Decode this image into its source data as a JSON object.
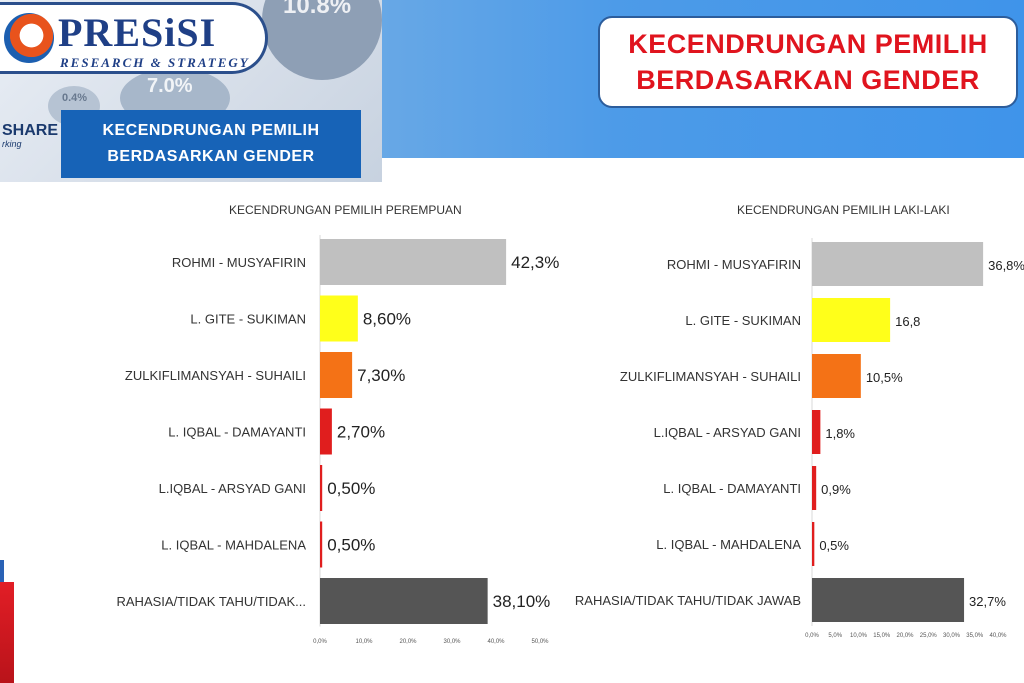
{
  "logo": {
    "title": "PRESiSI",
    "subtitle": "RESEARCH & STRATEGY"
  },
  "background": {
    "pct_a": "10.8%",
    "pct_b": "7.0%",
    "pct_c": "0.4%",
    "share": "SHARE",
    "share_sub": "rking"
  },
  "small_title": {
    "line1": "KECENDRUNGAN PEMILIH",
    "line2": "BERDASARKAN GENDER"
  },
  "main_title": {
    "line1": "KECENDRUNGAN PEMILIH",
    "line2": "BERDASARKAN GENDER"
  },
  "colors": {
    "header_blue": "#4d9be8",
    "title_red": "#e0141e",
    "box_blue": "#1763b7"
  },
  "chart_data": [
    {
      "type": "bar",
      "orientation": "horizontal",
      "title": "KECENDRUNGAN PEMILIH PEREMPUAN",
      "categories": [
        "ROHMI - MUSYAFIRIN",
        "L. GITE - SUKIMAN",
        "ZULKIFLIMANSYAH - SUHAILI",
        "L. IQBAL - DAMAYANTI",
        "L.IQBAL - ARSYAD GANI",
        "L. IQBAL - MAHDALENA",
        "RAHASIA/TIDAK TAHU/TIDAK..."
      ],
      "values": [
        42.3,
        8.6,
        7.3,
        2.7,
        0.5,
        0.5,
        38.1
      ],
      "value_labels": [
        "42,3%",
        "8,60%",
        "7,30%",
        "2,70%",
        "0,50%",
        "0,50%",
        "38,10%"
      ],
      "bar_colors": [
        "#c0c0c0",
        "#ffff1a",
        "#f47216",
        "#e01e1e",
        "#e01e1e",
        "#e01e1e",
        "#555555"
      ],
      "xlim": [
        0,
        50
      ],
      "xticks": [
        "0,0%",
        "10,0%",
        "20,0%",
        "30,0%",
        "40,0%",
        "50,0%"
      ]
    },
    {
      "type": "bar",
      "orientation": "horizontal",
      "title": "KECENDRUNGAN PEMILIH LAKI-LAKI",
      "categories": [
        "ROHMI - MUSYAFIRIN",
        "L. GITE - SUKIMAN",
        "ZULKIFLIMANSYAH - SUHAILI",
        "L.IQBAL - ARSYAD GANI",
        "L. IQBAL - DAMAYANTI",
        "L. IQBAL - MAHDALENA",
        "RAHASIA/TIDAK TAHU/TIDAK JAWAB"
      ],
      "values": [
        36.8,
        16.8,
        10.5,
        1.8,
        0.9,
        0.5,
        32.7
      ],
      "value_labels": [
        "36,8%",
        "16,8",
        "10,5%",
        "1,8%",
        "0,9%",
        "0,5%",
        "32,7%"
      ],
      "bar_colors": [
        "#c0c0c0",
        "#ffff1a",
        "#f47216",
        "#e01e1e",
        "#e01e1e",
        "#e01e1e",
        "#555555"
      ],
      "xlim": [
        0,
        40
      ],
      "xticks": [
        "0,0%",
        "5,0%",
        "10,0%",
        "15,0%",
        "20,0%",
        "25,0%",
        "30,0%",
        "35,0%",
        "40,0%"
      ]
    }
  ]
}
